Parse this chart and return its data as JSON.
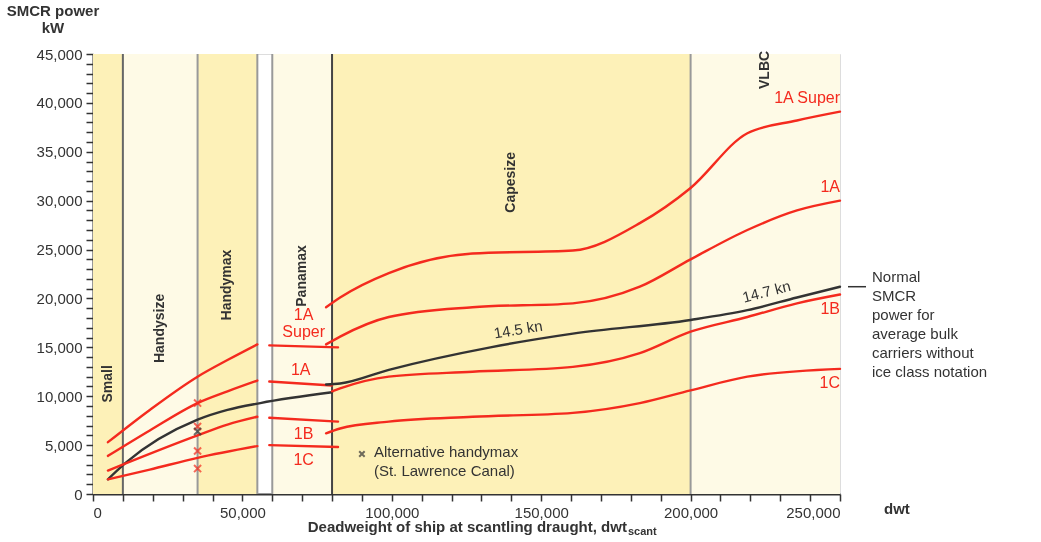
{
  "chart_data": {
    "type": "line",
    "xlabel": "Deadweight of ship at scantling draught, dwt$_{scant}$",
    "ylabel": "SMCR power\nkW",
    "xlim": [
      0,
      250000
    ],
    "ylim": [
      0,
      45000
    ],
    "xticks": [
      0,
      {
        "value": 10000,
        "label": null
      },
      {
        "value": 20000,
        "label": null
      },
      {
        "value": 30000,
        "label": null
      },
      {
        "value": 40000,
        "label": null
      },
      {
        "value": 50000,
        "label": "50,000"
      },
      {
        "value": 60000,
        "label": null
      },
      {
        "value": 70000,
        "label": null
      },
      {
        "value": 80000,
        "label": null
      },
      {
        "value": 90000,
        "label": null
      },
      {
        "value": 100000,
        "label": "100,000"
      },
      {
        "value": 110000,
        "label": null
      },
      {
        "value": 120000,
        "label": null
      },
      {
        "value": 130000,
        "label": null
      },
      {
        "value": 140000,
        "label": null
      },
      {
        "value": 150000,
        "label": "150,000"
      },
      {
        "value": 160000,
        "label": null
      },
      {
        "value": 170000,
        "label": null
      },
      {
        "value": 180000,
        "label": null
      },
      {
        "value": 190000,
        "label": null
      },
      {
        "value": 200000,
        "label": "200,000"
      },
      {
        "value": 210000,
        "label": null
      },
      {
        "value": 220000,
        "label": null
      },
      {
        "value": 230000,
        "label": null
      },
      {
        "value": 240000,
        "label": null
      },
      {
        "value": 250000,
        "label": "250,000"
      }
    ],
    "yticks": [
      0,
      {
        "value": 1000,
        "label": null
      },
      {
        "value": 2000,
        "label": null
      },
      {
        "value": 3000,
        "label": null
      },
      {
        "value": 4000,
        "label": null
      },
      {
        "value": 5000,
        "label": "5,000"
      },
      {
        "value": 6000,
        "label": null
      },
      {
        "value": 7000,
        "label": null
      },
      {
        "value": 8000,
        "label": null
      },
      {
        "value": 9000,
        "label": null
      },
      {
        "value": 10000,
        "label": "10,000"
      },
      {
        "value": 11000,
        "label": null
      },
      {
        "value": 12000,
        "label": null
      },
      {
        "value": 13000,
        "label": null
      },
      {
        "value": 14000,
        "label": null
      },
      {
        "value": 15000,
        "label": "15,000"
      },
      {
        "value": 16000,
        "label": null
      },
      {
        "value": 17000,
        "label": null
      },
      {
        "value": 18000,
        "label": null
      },
      {
        "value": 19000,
        "label": null
      },
      {
        "value": 20000,
        "label": "20,000"
      },
      {
        "value": 21000,
        "label": null
      },
      {
        "value": 22000,
        "label": null
      },
      {
        "value": 23000,
        "label": null
      },
      {
        "value": 24000,
        "label": null
      },
      {
        "value": 25000,
        "label": "25,000"
      },
      {
        "value": 26000,
        "label": null
      },
      {
        "value": 27000,
        "label": null
      },
      {
        "value": 28000,
        "label": null
      },
      {
        "value": 29000,
        "label": null
      },
      {
        "value": 30000,
        "label": "30,000"
      },
      {
        "value": 31000,
        "label": null
      },
      {
        "value": 32000,
        "label": null
      },
      {
        "value": 33000,
        "label": null
      },
      {
        "value": 34000,
        "label": null
      },
      {
        "value": 35000,
        "label": "35,000"
      },
      {
        "value": 36000,
        "label": null
      },
      {
        "value": 37000,
        "label": null
      },
      {
        "value": 38000,
        "label": null
      },
      {
        "value": 39000,
        "label": null
      },
      {
        "value": 40000,
        "label": "40,000"
      },
      {
        "value": 41000,
        "label": null
      },
      {
        "value": 42000,
        "label": null
      },
      {
        "value": 43000,
        "label": null
      },
      {
        "value": 44000,
        "label": null
      },
      {
        "value": 45000,
        "label": "45,000"
      }
    ],
    "grid": false,
    "legend": "bottom",
    "marker": "none",
    "line_style": "solid",
    "series": [
      {
        "color": "#f42a1e",
        "x": [
          5000,
          19000,
          35000,
          45000,
          55000
        ],
        "values": [
          5300,
          8600,
          12000,
          13700,
          15300
        ]
      },
      {
        "name": "1A\nSuper",
        "color": "#f42a1e",
        "x": [
          59000,
          82000
        ],
        "values": [
          15200,
          15000
        ]
      },
      {
        "name": "1A Super",
        "color": "#f42a1e",
        "x": [
          78000,
          82700,
          99000,
          127000,
          160600,
          183000,
          200000,
          219000,
          235600,
          250000
        ],
        "values": [
          19100,
          20100,
          22600,
          24600,
          24900,
          27700,
          31300,
          36900,
          38200,
          39100
        ]
      },
      {
        "color": "#f42a1e",
        "x": [
          5000,
          19000,
          35000,
          45000,
          55000
        ],
        "values": [
          3900,
          6500,
          9300,
          10500,
          11600
        ]
      },
      {
        "name": "1A",
        "color": "#f42a1e",
        "x": [
          59000,
          80000
        ],
        "values": [
          11500,
          11100
        ]
      },
      {
        "name": "1A",
        "color": "#f42a1e",
        "x": [
          78000,
          82700,
          99000,
          127000,
          160600,
          183000,
          200000,
          219000,
          235600,
          250000
        ],
        "values": [
          15300,
          16100,
          18100,
          19100,
          19500,
          21200,
          24000,
          27000,
          29000,
          30000
        ]
      },
      {
        "color": "#333333",
        "x": [
          5000,
          11000,
          35000,
          45000,
          56000,
          80000
        ],
        "values": [
          1500,
          3200,
          7600,
          8600,
          9300,
          10400
        ]
      },
      {
        "name": "Normal\nSMCR\npower for\naverage bulk\ncarriers without\nice class notation",
        "color": "#333333",
        "x": [
          78000,
          82700,
          99000,
          133000,
          160600,
          200000,
          219000,
          235600,
          250000
        ],
        "values": [
          11200,
          11300,
          12700,
          15000,
          16400,
          17800,
          18800,
          20100,
          21200
        ]
      },
      {
        "color": "#f42a1e",
        "x": [
          5000,
          35000,
          45000,
          55000
        ],
        "values": [
          2400,
          6000,
          7100,
          7900
        ]
      },
      {
        "name": "1B",
        "color": "#f42a1e",
        "x": [
          59000,
          82000
        ],
        "values": [
          7800,
          7400
        ]
      },
      {
        "name": "1B",
        "color": "#f42a1e",
        "x": [
          80000,
          82700,
          99000,
          127000,
          160600,
          183000,
          200000,
          219000,
          235600,
          250000
        ],
        "values": [
          10500,
          10800,
          12000,
          12500,
          13000,
          14400,
          16600,
          18100,
          19500,
          20400
        ]
      },
      {
        "color": "#f42a1e",
        "x": [
          5000,
          19000,
          35000,
          55000
        ],
        "values": [
          1500,
          2500,
          3700,
          4900
        ]
      },
      {
        "name": "1C",
        "color": "#f42a1e",
        "x": [
          59000,
          82000
        ],
        "values": [
          5000,
          4800
        ]
      },
      {
        "name": "1C",
        "color": "#f42a1e",
        "x": [
          78000,
          82700,
          99000,
          127000,
          160600,
          183000,
          200000,
          219000,
          250000
        ],
        "values": [
          6200,
          6700,
          7400,
          7900,
          8300,
          9300,
          10600,
          12000,
          12800
        ]
      },
      {
        "type": "scatter",
        "marker": "cross",
        "name": "Alternative handymax\n(St. Lawrence Canal)",
        "color": "#333333",
        "x": [
          35000,
          35000,
          35000,
          35000,
          35000
        ],
        "values": [
          9300,
          6900,
          4400,
          2600,
          6400
        ],
        "colors": [
          "#f42a1e",
          "#f42a1e",
          "#f42a1e",
          "#f42a1e",
          "#333333"
        ]
      }
    ],
    "bands": [
      {
        "axis": "x",
        "from": 0,
        "to": 10000,
        "label": "Small",
        "color": "#fdf1b8"
      },
      {
        "axis": "x",
        "from": 10000,
        "to": 35000,
        "label": "Handysize",
        "color": "#fefae6"
      },
      {
        "axis": "x",
        "from": 35000,
        "to": 55000,
        "label": "Handymax",
        "color": "#fdf1b8"
      },
      {
        "axis": "x",
        "from": 60000,
        "to": 80000,
        "label": "Panamax",
        "color": "#fefae6"
      },
      {
        "axis": "x",
        "from": 80000,
        "to": 200000,
        "label": "Capesize",
        "color": "#fdf1b8"
      },
      {
        "axis": "x",
        "from": 200000,
        "to": 250000,
        "label": "VLBC",
        "color": "#fefae6"
      }
    ],
    "ref_lines": [
      {
        "axis": "x",
        "value": 10000,
        "color": "#666666"
      },
      {
        "axis": "x",
        "value": 35000,
        "color": "#999999"
      },
      {
        "axis": "x",
        "value": 55000,
        "color": "#999999"
      },
      {
        "axis": "x",
        "value": 60000,
        "color": "#999999"
      },
      {
        "axis": "x",
        "value": 80000,
        "color": "#444444"
      },
      {
        "axis": "x",
        "value": 200000,
        "color": "#999999"
      }
    ],
    "annotations": [
      "dwt",
      {
        "text": "14.5 kn",
        "x": 143000,
        "y": 15500
      },
      {
        "text": "14.7 kn",
        "x": 226500,
        "y": 19400
      }
    ]
  }
}
